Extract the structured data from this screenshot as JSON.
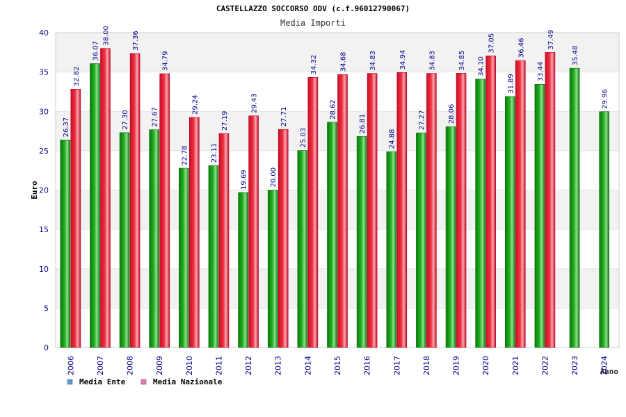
{
  "chart_data": {
    "type": "bar",
    "title": "CASTELLAZZO SOCCORSO ODV (c.f.96012790067)",
    "subtitle": "Media Importi",
    "xlabel": "Anno",
    "ylabel": "Euro",
    "ylim": [
      0,
      40
    ],
    "yticks": [
      "0",
      "5",
      "10",
      "15",
      "20",
      "25",
      "30",
      "35",
      "40"
    ],
    "categories": [
      "2006",
      "2007",
      "2008",
      "2009",
      "2010",
      "2011",
      "2012",
      "2013",
      "2014",
      "2015",
      "2016",
      "2017",
      "2018",
      "2019",
      "2020",
      "2021",
      "2022",
      "2023",
      "2024"
    ],
    "series": [
      {
        "name": "Media Ente",
        "color": "#1fa71f",
        "values": [
          26.37,
          36.07,
          27.3,
          27.67,
          22.78,
          23.11,
          19.69,
          20.0,
          25.03,
          28.62,
          26.81,
          24.88,
          27.27,
          28.06,
          34.1,
          31.89,
          33.44,
          35.48,
          29.96
        ],
        "labels": [
          "26.37",
          "36.07",
          "27.30",
          "27.67",
          "22.78",
          "23.11",
          "19.69",
          "20.00",
          "25.03",
          "28.62",
          "26.81",
          "24.88",
          "27.27",
          "28.06",
          "34.10",
          "31.89",
          "33.44",
          "35.48",
          "29.96"
        ]
      },
      {
        "name": "Media Nazionale",
        "color": "#e8283a",
        "values": [
          32.82,
          38.0,
          37.36,
          34.79,
          29.24,
          27.19,
          29.43,
          27.71,
          34.32,
          34.68,
          34.83,
          34.94,
          34.83,
          34.85,
          37.05,
          36.46,
          37.49,
          null,
          null
        ],
        "labels": [
          "32.82",
          "38.00",
          "37.36",
          "34.79",
          "29.24",
          "27.19",
          "29.43",
          "27.71",
          "34.32",
          "34.68",
          "34.83",
          "34.94",
          "34.83",
          "34.85",
          "37.05",
          "36.46",
          "37.49",
          null,
          null
        ]
      }
    ],
    "legend": [
      {
        "name": "Media Ente",
        "color": "#5b9bd5"
      },
      {
        "name": "Media Nazionale",
        "color": "#e07ab0"
      }
    ],
    "legend_position": "bottom-left",
    "grid": true,
    "colors": {
      "band": "#f2f2f2",
      "axis_text": "#00008b",
      "title_text": "#000000",
      "subtitle_text": "#333333",
      "label_text": "#00008b",
      "frame": "#cccccc"
    }
  }
}
